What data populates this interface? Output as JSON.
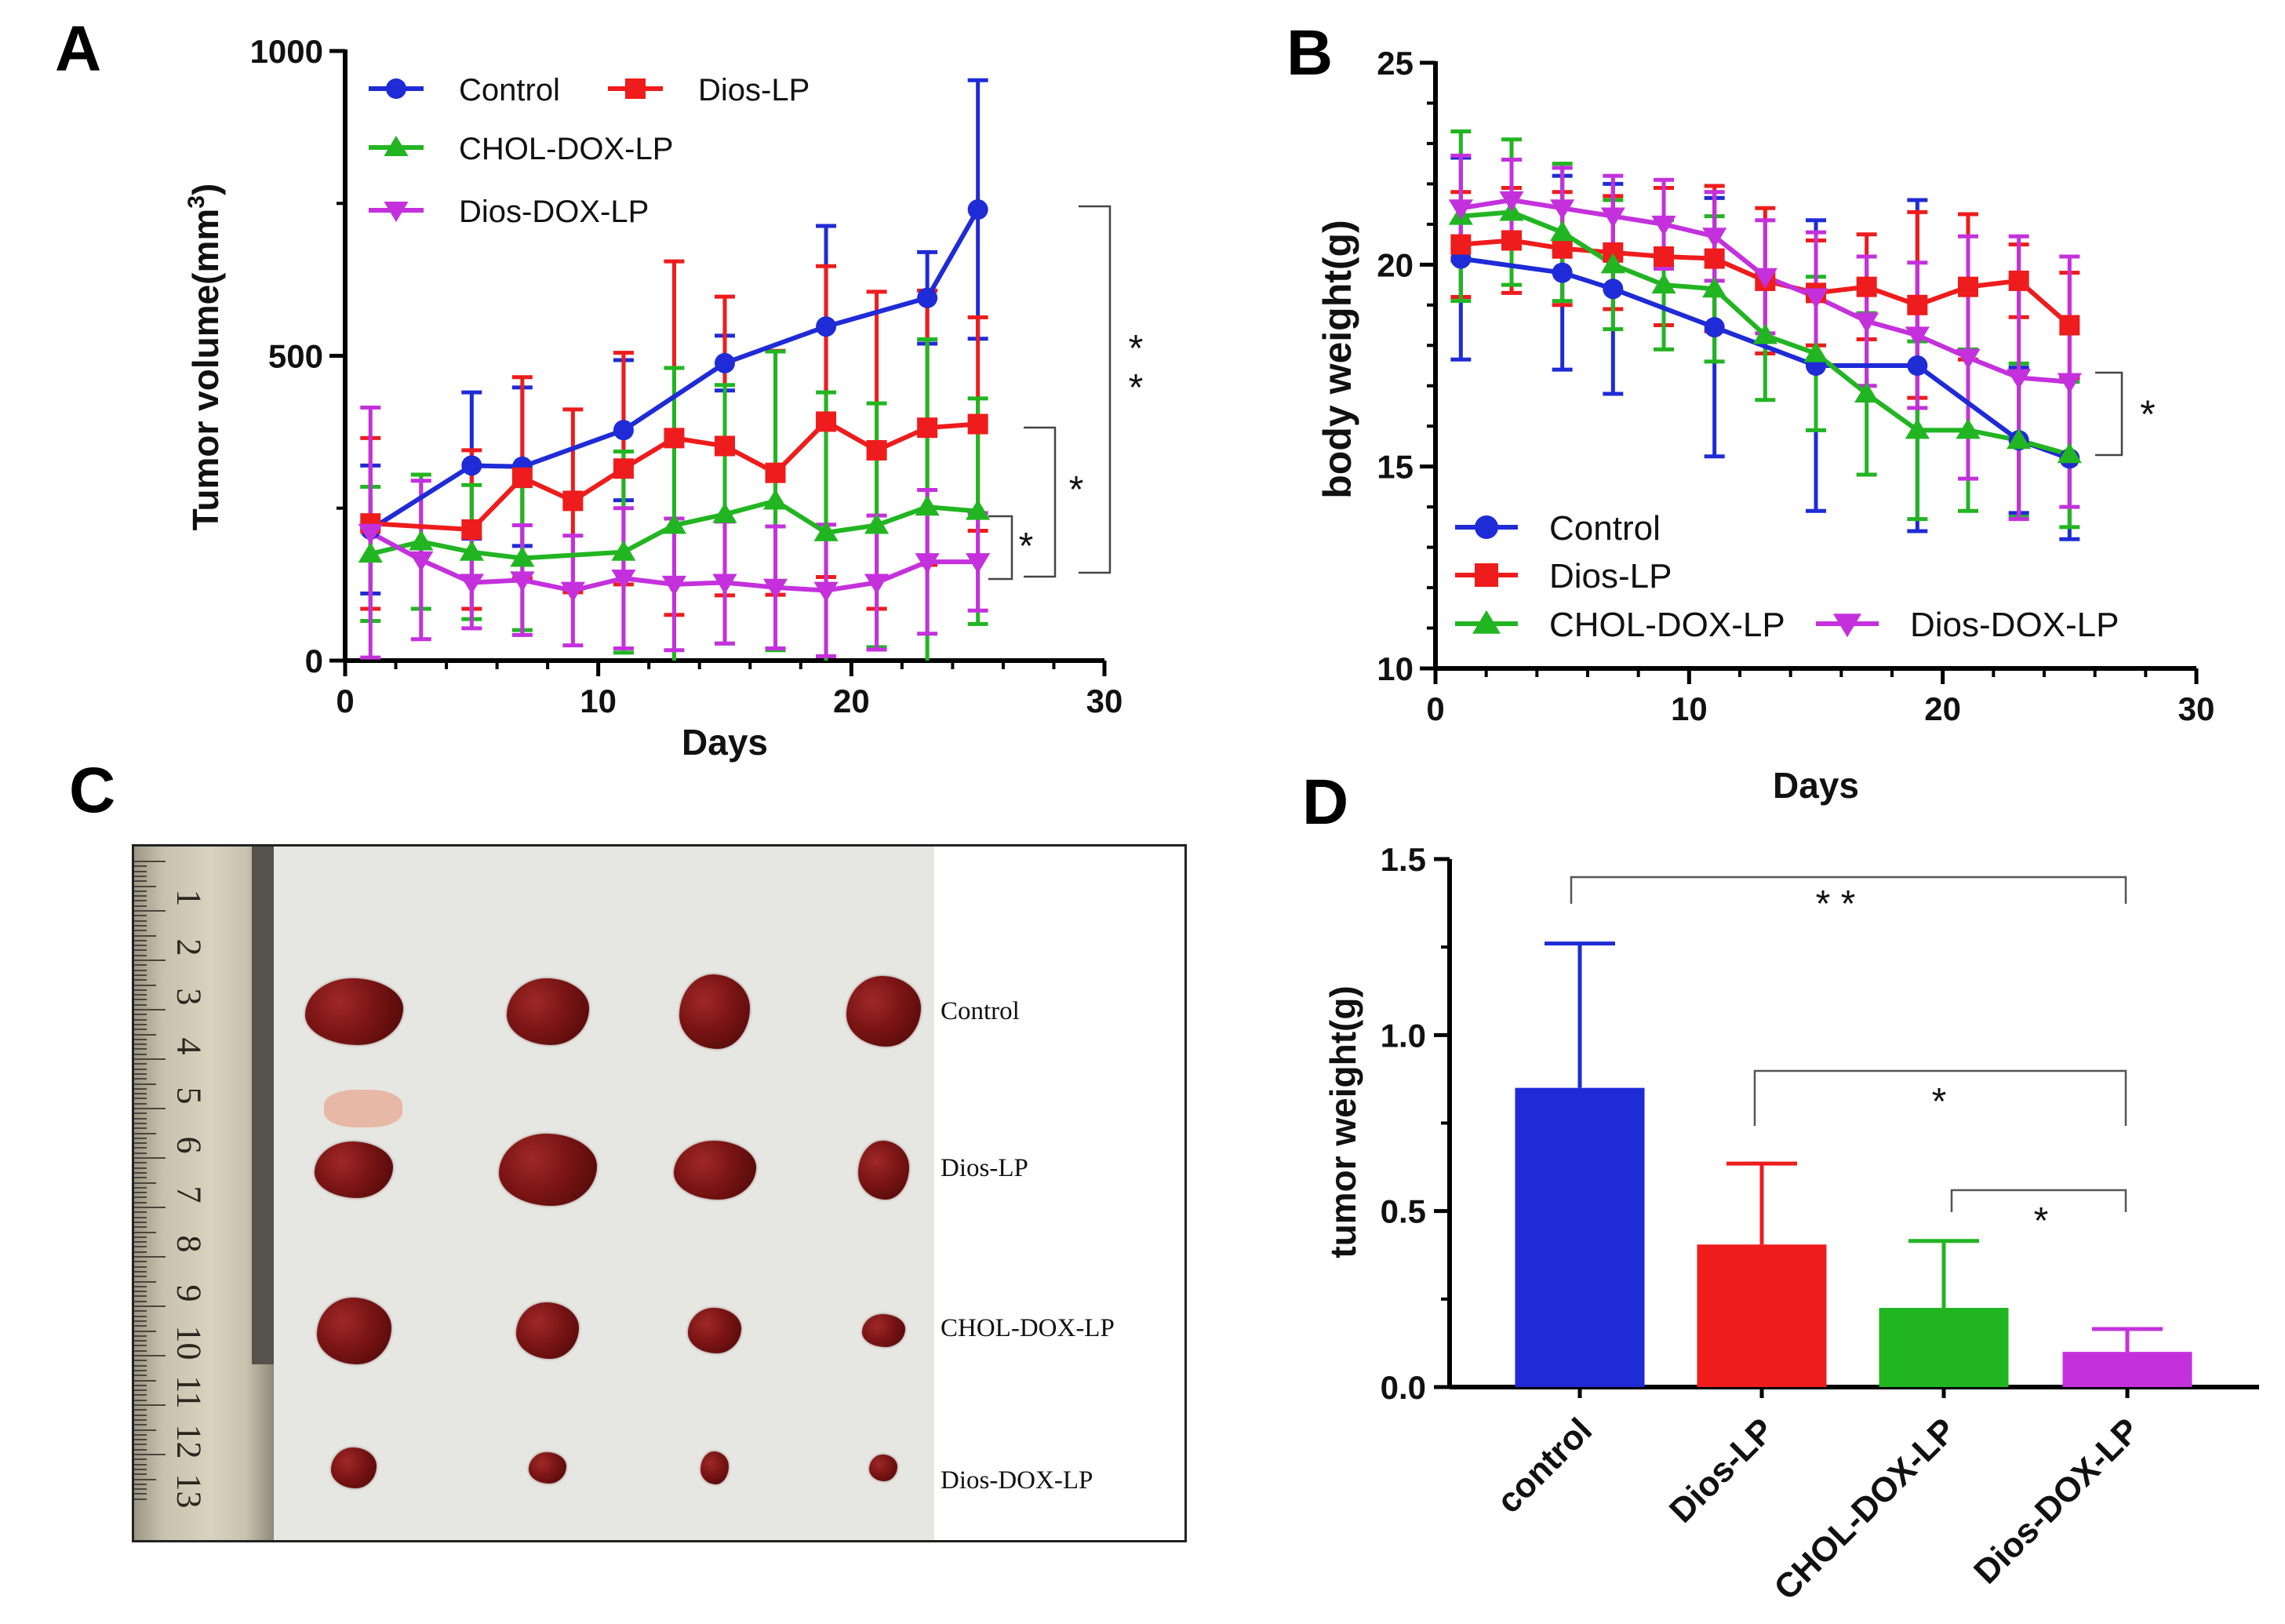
{
  "panel_letters": {
    "a": "A",
    "b": "B",
    "c": "C",
    "d": "D"
  },
  "colors": {
    "control": "#1f2bd6",
    "dios_lp": "#ee1c1c",
    "chol_dox_lp": "#22b522",
    "dios_dox_lp": "#c431dc"
  },
  "chart_data": [
    {
      "id": "A",
      "type": "line",
      "title": "",
      "xlabel": "Days",
      "ylabel_main": "Tumor volume(mm",
      "ylabel_sup": "3",
      "ylabel_tail": ")",
      "xlim": [
        0,
        30
      ],
      "ylim": [
        0,
        1000
      ],
      "xticks": [
        0,
        10,
        20,
        30
      ],
      "yticks": [
        0,
        500,
        1000
      ],
      "legend": [
        "Control",
        "Dios-LP",
        "CHOL-DOX-LP",
        "Dios-DOX-LP"
      ],
      "series": [
        {
          "name": "Control",
          "x": [
            1,
            5,
            7,
            11,
            15,
            19,
            23,
            25
          ],
          "y": [
            215,
            320,
            318,
            378,
            488,
            548,
            595,
            740
          ],
          "err": [
            105,
            120,
            130,
            115,
            45,
            165,
            75,
            212
          ]
        },
        {
          "name": "Dios-LP",
          "x": [
            1,
            5,
            7,
            9,
            11,
            13,
            15,
            17,
            19,
            21,
            23,
            25
          ],
          "y": [
            225,
            215,
            300,
            262,
            315,
            365,
            352,
            308,
            392,
            345,
            382,
            388
          ],
          "err": [
            140,
            130,
            165,
            150,
            190,
            290,
            245,
            200,
            255,
            260,
            225,
            175
          ]
        },
        {
          "name": "CHOL-DOX-LP",
          "x": [
            1,
            3,
            5,
            7,
            11,
            13,
            15,
            17,
            19,
            21,
            23,
            25
          ],
          "y": [
            175,
            195,
            178,
            168,
            178,
            222,
            240,
            262,
            210,
            222,
            252,
            245
          ],
          "err": [
            110,
            110,
            110,
            118,
            165,
            258,
            212,
            245,
            230,
            200,
            275,
            185
          ]
        },
        {
          "name": "Dios-DOX-LP",
          "x": [
            1,
            3,
            5,
            7,
            9,
            11,
            13,
            15,
            17,
            19,
            21,
            23,
            25
          ],
          "y": [
            210,
            165,
            128,
            132,
            115,
            135,
            125,
            128,
            120,
            115,
            128,
            162,
            162
          ],
          "err": [
            205,
            130,
            75,
            90,
            90,
            115,
            108,
            100,
            100,
            108,
            110,
            118,
            80
          ]
        }
      ],
      "significance": [
        "* *",
        "*",
        "*"
      ]
    },
    {
      "id": "B",
      "type": "line",
      "title": "",
      "xlabel": "Days",
      "ylabel": "body weight(g)",
      "xlim": [
        0,
        30
      ],
      "ylim": [
        10,
        25
      ],
      "xticks": [
        0,
        10,
        20,
        30
      ],
      "yticks": [
        10,
        15,
        20,
        25
      ],
      "legend": [
        "Control",
        "Dios-LP",
        "CHOL-DOX-LP",
        "Dios-DOX-LP"
      ],
      "series": [
        {
          "name": "Control",
          "x": [
            1,
            5,
            7,
            11,
            15,
            19,
            23,
            25
          ],
          "y": [
            20.15,
            19.8,
            19.4,
            18.45,
            17.5,
            17.5,
            15.65,
            15.2
          ],
          "err": [
            2.5,
            2.4,
            2.6,
            3.2,
            3.6,
            4.1,
            1.8,
            2.0
          ]
        },
        {
          "name": "Dios-LP",
          "x": [
            1,
            3,
            5,
            7,
            9,
            11,
            13,
            15,
            17,
            19,
            21,
            23,
            25
          ],
          "y": [
            20.5,
            20.6,
            20.4,
            20.3,
            20.2,
            20.15,
            19.6,
            19.3,
            19.45,
            19.0,
            19.45,
            19.6,
            18.5
          ],
          "err": [
            1.3,
            1.3,
            1.4,
            1.4,
            1.7,
            1.8,
            1.8,
            1.3,
            1.3,
            2.3,
            1.8,
            0.9,
            1.3
          ]
        },
        {
          "name": "CHOL-DOX-LP",
          "x": [
            1,
            3,
            5,
            7,
            9,
            11,
            13,
            15,
            17,
            19,
            21,
            23,
            25
          ],
          "y": [
            21.2,
            21.3,
            20.8,
            20.0,
            19.5,
            19.4,
            18.25,
            17.8,
            16.8,
            15.9,
            15.9,
            15.65,
            15.3
          ],
          "err": [
            2.1,
            1.8,
            1.7,
            1.6,
            1.6,
            1.8,
            1.6,
            1.9,
            2.0,
            2.2,
            2.0,
            1.9,
            1.8
          ]
        },
        {
          "name": "Dios-DOX-LP",
          "x": [
            1,
            3,
            5,
            7,
            9,
            11,
            13,
            15,
            17,
            19,
            21,
            23,
            25
          ],
          "y": [
            21.4,
            21.6,
            21.4,
            21.2,
            21.0,
            20.7,
            19.7,
            19.2,
            18.6,
            18.25,
            17.7,
            17.2,
            17.1
          ],
          "err": [
            1.3,
            1.0,
            1.0,
            1.0,
            1.1,
            1.1,
            1.4,
            1.6,
            1.6,
            1.8,
            3.0,
            3.5,
            3.1
          ]
        }
      ],
      "significance": [
        "*"
      ]
    },
    {
      "id": "D",
      "type": "bar",
      "title": "",
      "xlabel": "",
      "ylabel": "tumor weight(g)",
      "ylim": [
        0,
        1.5
      ],
      "yticks": [
        "0.0",
        "0.5",
        "1.0",
        "1.5"
      ],
      "categories": [
        "control",
        "Dios-LP",
        "CHOL-DOX-LP",
        "Dios-DOX-LP"
      ],
      "values": [
        0.85,
        0.405,
        0.225,
        0.1
      ],
      "err": [
        0.41,
        0.23,
        0.19,
        0.065
      ],
      "significance": [
        "* *",
        "*",
        "*"
      ]
    }
  ],
  "photo": {
    "row_labels": [
      "Control",
      "Dios-LP",
      "CHOL-DOX-LP",
      "Dios-DOX-LP"
    ],
    "ruler_numbers": [
      "1",
      "2",
      "3",
      "4",
      "5",
      "6",
      "7",
      "8",
      "9",
      "10",
      "11",
      "12",
      "13"
    ]
  }
}
